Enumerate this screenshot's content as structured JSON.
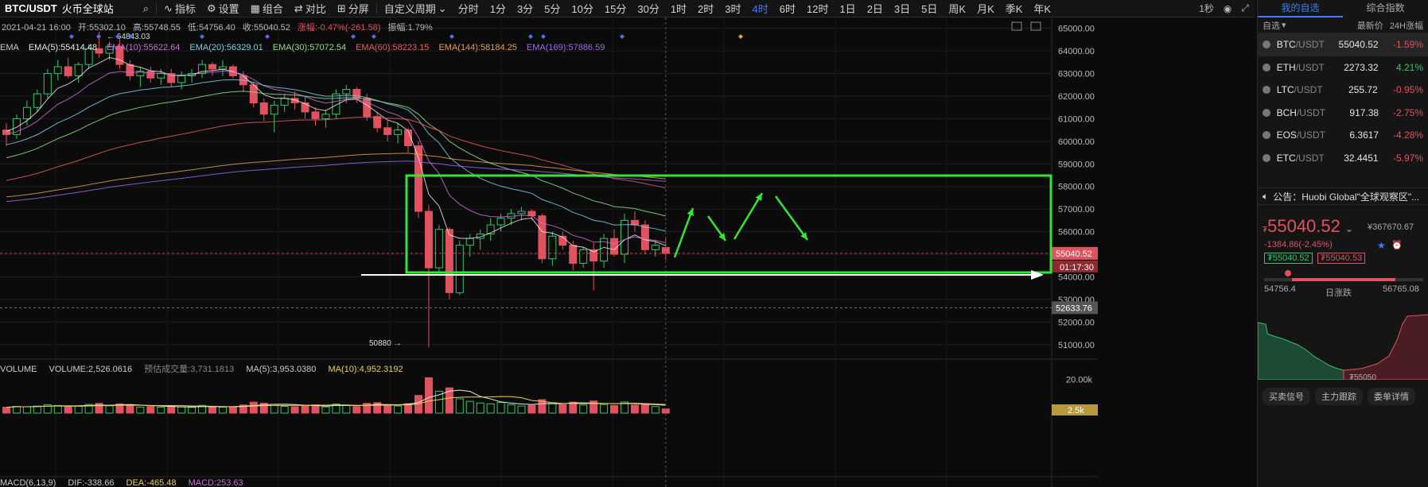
{
  "toolbar": {
    "symbol": "BTC/USDT",
    "exchange": "火币全球站",
    "indicators": "指标",
    "settings": "设置",
    "combine": "组合",
    "compare": "对比",
    "split": "分屏",
    "custom_period": "自定义周期",
    "intervals": [
      "分时",
      "1分",
      "3分",
      "5分",
      "10分",
      "15分",
      "30分",
      "1时",
      "2时",
      "3时",
      "4时",
      "6时",
      "12时",
      "1日",
      "2日",
      "3日",
      "5日",
      "周K",
      "月K",
      "季K",
      "年K"
    ],
    "active_interval": "4时",
    "refresh": "1秒"
  },
  "ohlc": {
    "datetime": "2021-04-21 16:00",
    "open": "开:55302.10",
    "high": "高:55748.55",
    "low": "低:54756.40",
    "close": "收:55040.52",
    "change": "涨幅:-0.47%(-261.58)",
    "amplitude": "振幅:1.79%"
  },
  "ema": {
    "name": "EMA",
    "items": [
      {
        "label": "EMA(5):55414.48",
        "color": "#e8e8e8"
      },
      {
        "label": "EMA(10):55622.64",
        "color": "#c86fd6"
      },
      {
        "label": "EMA(20):56329.01",
        "color": "#7ad0e8"
      },
      {
        "label": "EMA(30):57072.54",
        "color": "#8fe08f"
      },
      {
        "label": "EMA(60):58223.15",
        "color": "#e06060"
      },
      {
        "label": "EMA(144):58184.25",
        "color": "#e0a050"
      },
      {
        "label": "EMA(169):57886.59",
        "color": "#9a6ae8"
      }
    ]
  },
  "volume": {
    "name": "VOLUME",
    "value": "VOLUME:2,526.0616",
    "estimate": "预估成交量:3,731.1813",
    "ma5": "MA(5):3,953.0380",
    "ma10": "MA(10):4,952.3192"
  },
  "macd": {
    "name": "MACD(6,13,9)",
    "dif": "DIF:-338.66",
    "dea": "DEA:-465.48",
    "macd": "MACD:253.63"
  },
  "price_axis": [
    "65000.00",
    "64000.00",
    "63000.00",
    "62000.00",
    "61000.00",
    "60000.00",
    "59000.00",
    "58000.00",
    "57000.00",
    "56000.00",
    "55000.00",
    "54000.00",
    "53000.00",
    "52000.00",
    "51000.00"
  ],
  "volume_axis": "20.00k",
  "axis_tags": {
    "last_price": "55040.52",
    "countdown": "01:17:30",
    "marker_price": "52633.76",
    "volume_tag": "2.5k"
  },
  "annotations": {
    "high_mark": "64843.03",
    "low_mark": "50880"
  },
  "colors": {
    "up": "#2dc76d",
    "down": "#e0525f",
    "accent": "#3f7ef0",
    "drawing": "#33e633"
  },
  "chart_data": {
    "type": "candlestick",
    "title": "BTC/USDT",
    "interval": "4时",
    "ylim": [
      50500,
      65200
    ],
    "candles": [
      [
        60500,
        60800,
        59800,
        60300
      ],
      [
        60300,
        61200,
        60100,
        61000
      ],
      [
        61000,
        61800,
        60700,
        61500
      ],
      [
        61500,
        62300,
        61300,
        62100
      ],
      [
        62100,
        63200,
        61900,
        63000
      ],
      [
        63000,
        63600,
        62700,
        63300
      ],
      [
        63300,
        63700,
        62800,
        62900
      ],
      [
        62900,
        63500,
        62600,
        63400
      ],
      [
        63400,
        64300,
        63200,
        64100
      ],
      [
        64100,
        64843,
        63700,
        63900
      ],
      [
        63900,
        64400,
        63600,
        64200
      ],
      [
        64200,
        64500,
        63200,
        63400
      ],
      [
        63400,
        63600,
        62700,
        62900
      ],
      [
        62900,
        63300,
        62400,
        63100
      ],
      [
        63100,
        63300,
        62600,
        62800
      ],
      [
        62800,
        63200,
        62500,
        63000
      ],
      [
        63000,
        63200,
        62400,
        62600
      ],
      [
        62600,
        63100,
        62300,
        62900
      ],
      [
        62900,
        63200,
        62600,
        63000
      ],
      [
        63000,
        63600,
        62800,
        63400
      ],
      [
        63400,
        63500,
        62900,
        63200
      ],
      [
        63200,
        63600,
        62900,
        63300
      ],
      [
        63300,
        63400,
        62800,
        62900
      ],
      [
        62900,
        63100,
        62200,
        62500
      ],
      [
        62500,
        62600,
        61500,
        61700
      ],
      [
        61700,
        61900,
        60900,
        61200
      ],
      [
        61200,
        61800,
        60400,
        61600
      ],
      [
        61600,
        62100,
        61300,
        61900
      ],
      [
        61900,
        62200,
        61400,
        61700
      ],
      [
        61700,
        62000,
        61000,
        61300
      ],
      [
        61300,
        61500,
        60700,
        61000
      ],
      [
        61000,
        61400,
        60600,
        61200
      ],
      [
        61200,
        62300,
        61000,
        62100
      ],
      [
        62100,
        62500,
        61700,
        62300
      ],
      [
        62300,
        62400,
        61700,
        61900
      ],
      [
        61900,
        62100,
        60900,
        61100
      ],
      [
        61100,
        61300,
        60400,
        60600
      ],
      [
        60600,
        60900,
        60000,
        60300
      ],
      [
        60300,
        60800,
        59900,
        60500
      ],
      [
        60500,
        60600,
        59500,
        59800
      ],
      [
        59800,
        60000,
        56600,
        56900
      ],
      [
        56900,
        57200,
        50880,
        54400
      ],
      [
        54400,
        56300,
        54100,
        56100
      ],
      [
        56100,
        56200,
        53000,
        53300
      ],
      [
        53300,
        55600,
        53200,
        55400
      ],
      [
        55400,
        55900,
        54900,
        55700
      ],
      [
        55700,
        56100,
        55200,
        55900
      ],
      [
        55900,
        56600,
        55600,
        56300
      ],
      [
        56300,
        56800,
        56000,
        56600
      ],
      [
        56600,
        57000,
        56300,
        56800
      ],
      [
        56800,
        57100,
        56500,
        56900
      ],
      [
        56900,
        57000,
        56500,
        56700
      ],
      [
        56700,
        56800,
        54600,
        54800
      ],
      [
        54800,
        56000,
        54500,
        55800
      ],
      [
        55800,
        56000,
        55200,
        55400
      ],
      [
        55400,
        55600,
        54300,
        54600
      ],
      [
        54600,
        55300,
        54400,
        55200
      ],
      [
        55200,
        55500,
        53400,
        54700
      ],
      [
        54700,
        55900,
        54400,
        55700
      ],
      [
        55700,
        56100,
        54900,
        55000
      ],
      [
        55000,
        56800,
        54600,
        56500
      ],
      [
        56500,
        56900,
        56000,
        56300
      ],
      [
        56300,
        56500,
        55000,
        55200
      ],
      [
        55200,
        55600,
        54900,
        55400
      ],
      [
        55300,
        55750,
        54750,
        55040
      ]
    ],
    "volumes": [
      3.5,
      4.0,
      3.8,
      4.2,
      5.0,
      4.5,
      3.9,
      4.1,
      5.2,
      5.8,
      4.3,
      5.5,
      4.8,
      3.6,
      3.9,
      3.5,
      4.0,
      3.7,
      3.4,
      4.6,
      3.8,
      3.5,
      3.9,
      4.8,
      6.5,
      5.9,
      5.2,
      4.0,
      3.8,
      4.5,
      4.9,
      3.7,
      5.4,
      4.6,
      3.9,
      5.8,
      6.2,
      4.8,
      4.2,
      5.6,
      10.5,
      21.0,
      13.0,
      15.0,
      8.5,
      7.0,
      6.0,
      5.5,
      6.3,
      5.0,
      4.2,
      4.6,
      8.0,
      6.2,
      5.0,
      6.5,
      4.8,
      7.2,
      5.1,
      4.5,
      6.6,
      4.8,
      5.5,
      3.9,
      2.5
    ],
    "volume_ylim": [
      0,
      25
    ]
  },
  "sidebar": {
    "tab_watchlist": "我的自选",
    "tab_index": "综合指数",
    "col_self": "自选",
    "col_price": "最新价",
    "col_change": "24H涨幅",
    "markets": [
      {
        "base": "BTC",
        "quote": "/USDT",
        "price": "55040.52",
        "change": "-1.59%",
        "dir": "dn"
      },
      {
        "base": "ETH",
        "quote": "/USDT",
        "price": "2273.32",
        "change": "4.21%",
        "dir": "up"
      },
      {
        "base": "LTC",
        "quote": "/USDT",
        "price": "255.72",
        "change": "-0.95%",
        "dir": "dn"
      },
      {
        "base": "BCH",
        "quote": "/USDT",
        "price": "917.38",
        "change": "-2.75%",
        "dir": "dn"
      },
      {
        "base": "EOS",
        "quote": "/USDT",
        "price": "6.3617",
        "change": "-4.28%",
        "dir": "dn"
      },
      {
        "base": "ETC",
        "quote": "/USDT",
        "price": "32.4451",
        "change": "-5.97%",
        "dir": "dn"
      }
    ],
    "notice": "公告：Huobi Global\"全球观察区\"...",
    "big_price": "55040.52",
    "currency_mark": "₮",
    "cny_price": "¥367670.67",
    "change_text": "-1384.86(-2.45%)",
    "tag_buy": "₮55040.52",
    "tag_sell": "₮55040.53",
    "range_low": "54756.4",
    "range_label": "日涨跌",
    "range_high": "56765.08",
    "range_position": 0.14,
    "depth_tag": "₮55050",
    "btn_signal": "买卖信号",
    "btn_track": "主力跟踪",
    "btn_detail": "委单详情"
  }
}
